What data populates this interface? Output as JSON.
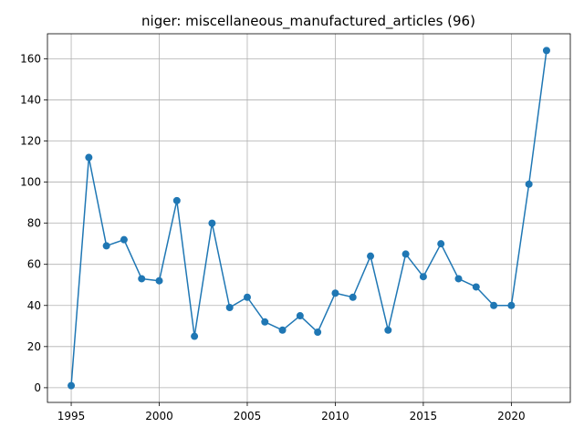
{
  "chart_data": {
    "type": "line",
    "title": "niger: miscellaneous_manufactured_articles (96)",
    "xlabel": "",
    "ylabel": "",
    "x": [
      1995,
      1996,
      1997,
      1998,
      1999,
      2000,
      2001,
      2002,
      2003,
      2004,
      2005,
      2006,
      2007,
      2008,
      2009,
      2010,
      2011,
      2012,
      2013,
      2014,
      2015,
      2016,
      2017,
      2018,
      2019,
      2020,
      2021,
      2022
    ],
    "series": [
      {
        "values": [
          1,
          112,
          69,
          72,
          53,
          52,
          91,
          25,
          80,
          39,
          44,
          32,
          28,
          35,
          27,
          46,
          44,
          64,
          28,
          65,
          54,
          70,
          53,
          49,
          40,
          40,
          99,
          164
        ]
      }
    ],
    "xlim": [
      1993.65,
      2023.35
    ],
    "ylim": [
      -7.15,
      172.15
    ],
    "xticks": [
      1995,
      2000,
      2005,
      2010,
      2015,
      2020
    ],
    "yticks": [
      0,
      20,
      40,
      60,
      80,
      100,
      120,
      140,
      160
    ],
    "grid": true,
    "line_color": "#1f77b4",
    "marker": "circle"
  }
}
